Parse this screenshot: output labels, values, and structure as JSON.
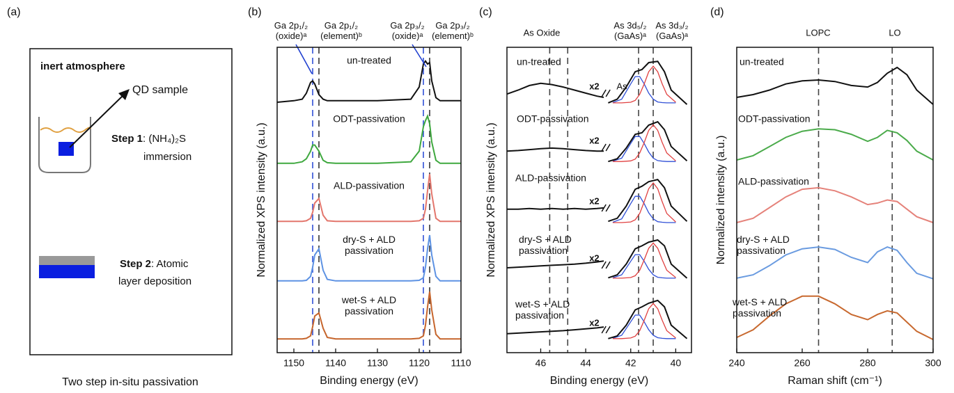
{
  "schematic": {
    "label": "(a)",
    "atmosphere": "inert atmosphere",
    "sample": "QD sample",
    "step1": "Step 1",
    "step1_text": ": (NH₄)₂S",
    "step1_text2": "immersion",
    "step2": "Step 2",
    "step2_text": ": Atomic",
    "step2_text2": "layer deposition",
    "caption": "Two step in-situ passivation"
  },
  "chart_data": [
    {
      "type": "line",
      "label": "(b)",
      "xlabel": "Binding energy (eV)",
      "ylabel": "Normalized XPS intensity (a.u.)",
      "xlim": [
        1154,
        1110
      ],
      "xticks": [
        1150,
        1140,
        1130,
        1120,
        1110
      ],
      "ylim": [
        0,
        10
      ],
      "x": [
        1154,
        1150,
        1148,
        1147,
        1146,
        1145.5,
        1145,
        1144,
        1143,
        1142,
        1140,
        1130,
        1122,
        1120,
        1119,
        1118.5,
        1118,
        1117.5,
        1117,
        1116,
        1115,
        1110
      ],
      "series": [
        {
          "name": "un-treated",
          "color": "#111111",
          "values": [
            8.2,
            8.25,
            8.3,
            8.5,
            8.85,
            8.9,
            8.8,
            8.45,
            8.3,
            8.25,
            8.25,
            8.25,
            8.3,
            8.7,
            9.45,
            9.55,
            9.45,
            9.5,
            8.9,
            8.35,
            8.25,
            8.25
          ]
        },
        {
          "name": "ODT-passivation",
          "color": "#3fa83f",
          "values": [
            6.2,
            6.2,
            6.25,
            6.35,
            6.6,
            6.8,
            6.8,
            6.6,
            6.3,
            6.22,
            6.2,
            6.2,
            6.25,
            6.6,
            7.4,
            7.6,
            7.75,
            7.5,
            6.9,
            6.3,
            6.2,
            6.2
          ]
        },
        {
          "name": "ALD-passivation",
          "color": "#e3766c",
          "values": [
            4.3,
            4.3,
            4.3,
            4.32,
            4.4,
            4.6,
            4.9,
            5.05,
            4.5,
            4.32,
            4.3,
            4.3,
            4.3,
            4.32,
            4.4,
            4.7,
            5.3,
            5.85,
            5.2,
            4.4,
            4.3,
            4.3
          ]
        },
        {
          "name": "dry-S + ALD\npassivation",
          "color": "#5d92e3",
          "values": [
            2.35,
            2.35,
            2.35,
            2.37,
            2.5,
            2.8,
            3.2,
            3.4,
            2.7,
            2.4,
            2.35,
            2.35,
            2.35,
            2.37,
            2.45,
            2.8,
            3.4,
            3.85,
            3.2,
            2.5,
            2.35,
            2.35
          ]
        },
        {
          "name": "wet-S + ALD\npassivation",
          "color": "#c6652c",
          "values": [
            0.45,
            0.45,
            0.45,
            0.47,
            0.55,
            0.85,
            1.2,
            1.3,
            0.8,
            0.5,
            0.45,
            0.45,
            0.45,
            0.47,
            0.55,
            0.9,
            1.5,
            2.0,
            1.4,
            0.6,
            0.45,
            0.45
          ]
        }
      ],
      "ref_lines": [
        {
          "x": 1145.5,
          "color": "#2f4fd6"
        },
        {
          "x": 1144,
          "color": "#333333"
        },
        {
          "x": 1119,
          "color": "#2f4fd6"
        },
        {
          "x": 1117.5,
          "color": "#333333"
        }
      ],
      "annotations": [
        {
          "text": "Ga 2p₁/₂\n(oxide)ᵃ",
          "color": "#2040d0"
        },
        {
          "text": "Ga 2p₁/₂\n(element)ᵇ",
          "color": "#e04040"
        },
        {
          "text": "Ga 2p₃/₂\n(oxide)ᵃ",
          "color": "#2040d0"
        },
        {
          "text": "Ga 2p₃/₂\n(element)ᵇ",
          "color": "#e04040"
        }
      ]
    },
    {
      "type": "line",
      "label": "(c)",
      "xlabel": "Binding energy (eV)",
      "ylabel": "Normalized XPS intensity (a.u.)",
      "xlim": [
        47.5,
        39.3
      ],
      "xticks": [
        46,
        44,
        42,
        40
      ],
      "ylim": [
        0,
        10
      ],
      "break_label": "x2",
      "x": [
        47.5,
        47,
        46.5,
        46,
        45.5,
        45,
        44.5,
        44,
        43.5,
        43.2,
        43.1,
        43,
        42.6,
        42.2,
        41.8,
        41.5,
        41.2,
        40.8,
        40.5,
        40.2,
        39.5
      ],
      "series": [
        {
          "name": "un-treated",
          "color": "#111111",
          "values": [
            8.47,
            8.6,
            8.75,
            8.82,
            8.78,
            8.7,
            8.6,
            8.5,
            8.4,
            8.36,
            null,
            8.18,
            8.3,
            8.7,
            9.2,
            9.27,
            9.5,
            9.54,
            9.2,
            8.6,
            8.13
          ]
        },
        {
          "name": "ODT-passivation",
          "color": "#111111",
          "label_color": "#3fa83f",
          "values": [
            6.6,
            6.62,
            6.65,
            6.68,
            6.7,
            6.68,
            6.65,
            6.62,
            6.6,
            6.6,
            null,
            6.26,
            6.35,
            6.7,
            7.15,
            7.2,
            7.45,
            7.56,
            7.3,
            6.75,
            6.28
          ]
        },
        {
          "name": "ALD-passivation",
          "color": "#111111",
          "label_color": "#e3766c",
          "values": [
            4.7,
            4.7,
            4.72,
            4.7,
            4.72,
            4.7,
            4.72,
            4.7,
            4.72,
            4.74,
            null,
            4.3,
            4.4,
            4.8,
            5.35,
            5.45,
            5.6,
            5.67,
            5.4,
            4.8,
            4.3
          ]
        },
        {
          "name": "dry-S + ALD\npassivation",
          "color": "#111111",
          "label_color": "#5d92e3",
          "values": [
            2.78,
            2.8,
            2.82,
            2.84,
            2.86,
            2.88,
            2.9,
            2.93,
            2.97,
            3.0,
            null,
            2.45,
            2.55,
            2.9,
            3.4,
            3.5,
            3.62,
            3.69,
            3.5,
            2.9,
            2.44
          ]
        },
        {
          "name": "wet-S + ALD\npassivation",
          "color": "#111111",
          "label_color": "#c6652c",
          "values": [
            0.62,
            0.64,
            0.66,
            0.68,
            0.7,
            0.72,
            0.75,
            0.78,
            0.81,
            0.84,
            null,
            0.46,
            0.55,
            0.9,
            1.4,
            1.5,
            1.62,
            1.71,
            1.5,
            0.9,
            0.46
          ]
        }
      ],
      "fit_x": [
        42.8,
        42.4,
        42,
        41.8,
        41.6,
        41.4,
        41.2,
        41,
        40.8,
        40.6,
        40.4,
        40
      ],
      "fits": [
        {
          "color": "#2f4fd6",
          "values": [
            8.19,
            8.3,
            8.8,
            9.04,
            9.04,
            8.8,
            8.5,
            8.3,
            8.21,
            8.19,
            8.18,
            8.18
          ]
        },
        {
          "color": "#e04040",
          "values": [
            8.18,
            8.18,
            8.2,
            8.26,
            8.46,
            8.8,
            9.2,
            9.38,
            9.2,
            8.8,
            8.46,
            8.2
          ]
        },
        {
          "color": "#2f4fd6",
          "values": [
            6.27,
            6.37,
            6.85,
            7.08,
            7.08,
            6.85,
            6.57,
            6.37,
            6.29,
            6.27,
            6.26,
            6.26
          ]
        },
        {
          "color": "#e04040",
          "values": [
            6.26,
            6.26,
            6.28,
            6.34,
            6.54,
            6.88,
            7.28,
            7.46,
            7.28,
            6.88,
            6.54,
            6.28
          ]
        },
        {
          "color": "#2f4fd6",
          "values": [
            4.27,
            4.38,
            4.88,
            5.12,
            5.12,
            4.88,
            4.58,
            4.38,
            4.29,
            4.27,
            4.26,
            4.26
          ]
        },
        {
          "color": "#e04040",
          "values": [
            4.26,
            4.26,
            4.28,
            4.35,
            4.56,
            4.94,
            5.37,
            5.56,
            5.37,
            4.94,
            4.56,
            4.28
          ]
        },
        {
          "color": "#2f4fd6",
          "values": [
            2.45,
            2.55,
            2.99,
            3.21,
            3.21,
            2.99,
            2.73,
            2.55,
            2.47,
            2.45,
            2.44,
            2.44
          ]
        },
        {
          "color": "#e04040",
          "values": [
            2.44,
            2.44,
            2.46,
            2.52,
            2.7,
            3.04,
            3.42,
            3.59,
            3.42,
            3.04,
            2.7,
            2.46
          ]
        },
        {
          "color": "#2f4fd6",
          "values": [
            0.47,
            0.57,
            1.01,
            1.23,
            1.23,
            1.01,
            0.75,
            0.57,
            0.49,
            0.47,
            0.46,
            0.46
          ]
        },
        {
          "color": "#e04040",
          "values": [
            0.46,
            0.46,
            0.48,
            0.54,
            0.72,
            1.06,
            1.44,
            1.61,
            1.44,
            1.06,
            0.72,
            0.48
          ]
        }
      ],
      "ref_lines": [
        {
          "x": 45.6,
          "color": "#444444"
        },
        {
          "x": 44.8,
          "color": "#444444"
        },
        {
          "x": 41.65,
          "color": "#444444"
        },
        {
          "x": 41.0,
          "color": "#444444"
        }
      ],
      "annotations": [
        {
          "text": "As Oxide",
          "color": "#111111"
        },
        {
          "text": "As 3d₅/₂\n(GaAs)ᵃ",
          "color": "#2040d0"
        },
        {
          "text": "As 3d₃/₂\n(GaAs)ᵃ",
          "color": "#e04040"
        },
        {
          "text": "As",
          "color": "#5ccf5c"
        }
      ]
    },
    {
      "type": "line",
      "label": "(d)",
      "xlabel": "Raman shift (cm⁻¹)",
      "ylabel": "Normalized intensity (a.u.)",
      "xlim": [
        240,
        300
      ],
      "xticks": [
        240,
        260,
        280,
        300
      ],
      "ylim": [
        0,
        10
      ],
      "x": [
        240,
        245,
        250,
        255,
        260,
        265,
        270,
        275,
        280,
        283,
        286,
        289,
        292,
        295,
        300
      ],
      "series": [
        {
          "name": "un-treated",
          "color": "#111111",
          "values": [
            8.36,
            8.45,
            8.6,
            8.8,
            8.9,
            8.93,
            8.88,
            8.75,
            8.7,
            8.85,
            9.15,
            9.34,
            9.1,
            8.6,
            8.13
          ]
        },
        {
          "name": "ODT-passivation",
          "color": "#4bab4b",
          "values": [
            6.31,
            6.45,
            6.75,
            7.05,
            7.25,
            7.33,
            7.3,
            7.15,
            6.92,
            7.05,
            7.28,
            7.2,
            6.95,
            6.6,
            6.31
          ]
        },
        {
          "name": "ALD-passivation",
          "color": "#e5827a",
          "values": [
            4.26,
            4.4,
            4.75,
            5.1,
            5.35,
            5.4,
            5.3,
            5.1,
            4.85,
            4.9,
            5.0,
            4.95,
            4.7,
            4.45,
            4.26
          ]
        },
        {
          "name": "dry-S + ALD\npassivation",
          "color": "#6a9be0",
          "values": [
            2.44,
            2.55,
            2.85,
            3.2,
            3.4,
            3.46,
            3.38,
            3.12,
            2.95,
            3.3,
            3.46,
            3.35,
            2.95,
            2.6,
            2.42
          ]
        },
        {
          "name": "wet-S + ALD\npassivation",
          "color": "#c8692f",
          "values": [
            0.5,
            0.75,
            1.2,
            1.6,
            1.85,
            1.85,
            1.6,
            1.25,
            1.08,
            1.25,
            1.37,
            1.3,
            1.0,
            0.7,
            0.43
          ]
        }
      ],
      "ref_lines": [
        {
          "x": 265,
          "color": "#444444"
        },
        {
          "x": 287.5,
          "color": "#444444"
        }
      ],
      "annotations": [
        {
          "text": "LOPC",
          "color": "#111111"
        },
        {
          "text": "LO",
          "color": "#111111"
        }
      ]
    }
  ]
}
